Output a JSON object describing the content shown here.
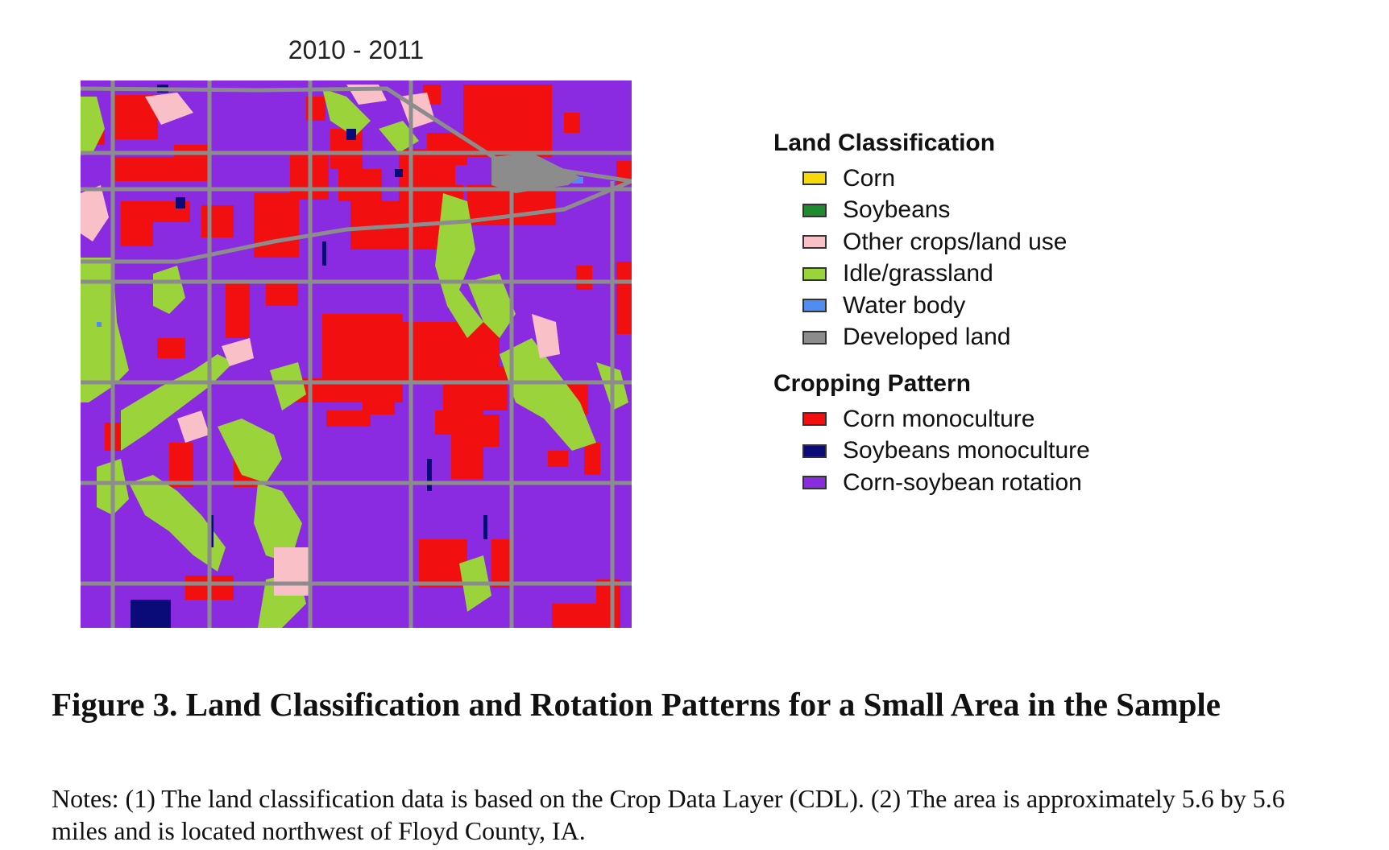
{
  "map": {
    "title": "2010 - 2011"
  },
  "legend": {
    "land_classification": {
      "heading": "Land Classification",
      "items": [
        {
          "label": "Corn",
          "color": "#f5d90a",
          "icon": "corn-swatch"
        },
        {
          "label": "Soybeans",
          "color": "#1e8c2e",
          "icon": "soybeans-swatch"
        },
        {
          "label": "Other crops/land use",
          "color": "#f9c0c8",
          "icon": "other-crops-swatch"
        },
        {
          "label": "Idle/grassland",
          "color": "#9ad43a",
          "icon": "idle-grassland-swatch"
        },
        {
          "label": "Water body",
          "color": "#4f8df5",
          "icon": "water-body-swatch"
        },
        {
          "label": "Developed land",
          "color": "#8c8c8c",
          "icon": "developed-land-swatch"
        }
      ]
    },
    "cropping_pattern": {
      "heading": "Cropping Pattern",
      "items": [
        {
          "label": "Corn monoculture",
          "color": "#f20f0f",
          "icon": "corn-monoculture-swatch"
        },
        {
          "label": "Soybeans monoculture",
          "color": "#0a0a78",
          "icon": "soybeans-monoculture-swatch"
        },
        {
          "label": "Corn-soybean rotation",
          "color": "#8a2be2",
          "icon": "corn-soybean-rotation-swatch"
        }
      ]
    }
  },
  "caption": {
    "title": "Figure 3. Land Classification and Rotation Patterns for a Small Area in the Sample",
    "notes": "Notes: (1) The land classification data is based on the Crop Data Layer (CDL). (2) The area is approximately 5.6 by 5.6 miles and is located northwest of Floyd County, IA."
  }
}
